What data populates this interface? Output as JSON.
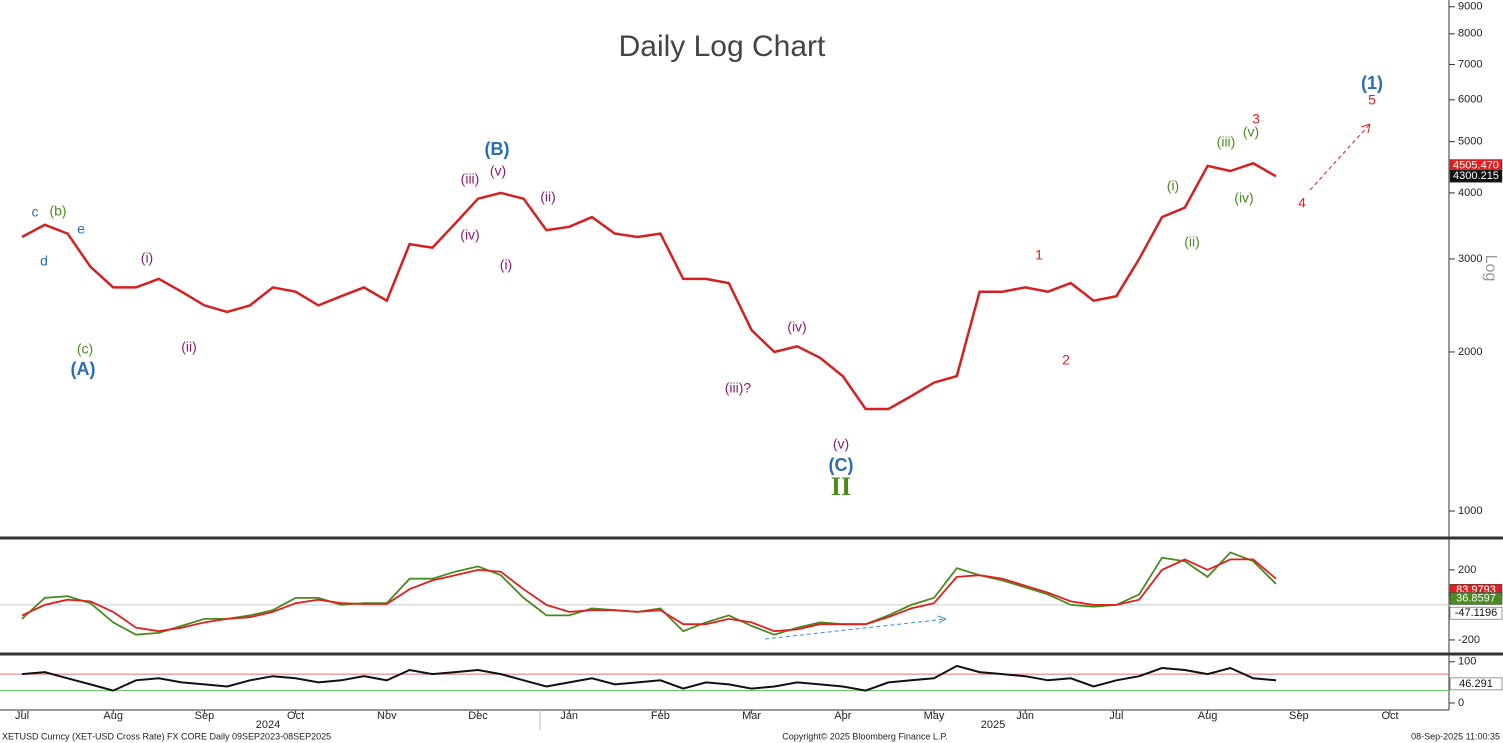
{
  "chart_data": [
    {
      "type": "line",
      "title": "Daily Log Chart",
      "y_axis_label": "Log",
      "log_scale": true,
      "categories": [
        "Jul",
        null,
        null,
        null,
        "Aug",
        null,
        null,
        null,
        "Sep",
        null,
        null,
        null,
        "Oct",
        null,
        null,
        null,
        "Nov",
        null,
        null,
        null,
        "Dec",
        null,
        null,
        null,
        "Jan",
        null,
        null,
        null,
        "Feb",
        null,
        null,
        null,
        "Mar",
        null,
        null,
        null,
        "Apr",
        null,
        null,
        null,
        "May",
        null,
        null,
        null,
        "Jun",
        null,
        null,
        null,
        "Jul",
        null,
        null,
        null,
        "Aug",
        null,
        null,
        null,
        "Sep",
        null,
        null,
        null,
        "Oct",
        null,
        null,
        null
      ],
      "group_labels": [
        "2024",
        "2025"
      ],
      "color": "#d42020",
      "values": [
        3300,
        3480,
        3350,
        2900,
        2650,
        2650,
        2750,
        2600,
        2450,
        2380,
        2450,
        2650,
        2600,
        2450,
        2550,
        2650,
        2500,
        3200,
        3150,
        3500,
        3900,
        4000,
        3900,
        3400,
        3450,
        3600,
        3350,
        3300,
        3350,
        2750,
        2750,
        2700,
        2200,
        2000,
        2050,
        1950,
        1800,
        1560,
        1560,
        1650,
        1750,
        1800,
        2600,
        2600,
        2650,
        2600,
        2700,
        2500,
        2550,
        3000,
        3600,
        3750,
        4500,
        4400,
        4550,
        4300,
        null,
        null,
        null,
        null,
        null,
        null,
        null,
        null
      ],
      "ylim": [
        893,
        9270
      ],
      "yticks": [
        1000,
        2000,
        3000,
        4000,
        5000,
        6000,
        7000,
        8000,
        9000
      ],
      "last_labels": [
        {
          "label": "4505.470",
          "color": "#e02020"
        },
        {
          "label": "4300.215",
          "color": "#111111"
        }
      ],
      "annotations": [
        {
          "text": "c",
          "color": "#2a6db0"
        },
        {
          "text": "(b)",
          "color": "#4a8a20"
        },
        {
          "text": "e",
          "color": "#2a6db0"
        },
        {
          "text": "d",
          "color": "#2a6db0"
        },
        {
          "text": "(c)",
          "color": "#4a8a20"
        },
        {
          "text": "(A)",
          "color": "#2a6db0"
        },
        {
          "text": "(i)",
          "color": "#8b1a6b"
        },
        {
          "text": "(ii)",
          "color": "#8b1a6b"
        },
        {
          "text": "(iii)",
          "color": "#8b1a6b"
        },
        {
          "text": "(v)",
          "color": "#8b1a6b"
        },
        {
          "text": "(B)",
          "color": "#2a6db0"
        },
        {
          "text": "(iv)",
          "color": "#8b1a6b"
        },
        {
          "text": "(i)",
          "color": "#8b1a6b"
        },
        {
          "text": "(ii)",
          "color": "#8b1a6b"
        },
        {
          "text": "(iv)",
          "color": "#8b1a6b"
        },
        {
          "text": "(iii)?",
          "color": "#8b1a6b"
        },
        {
          "text": "(v)",
          "color": "#8b1a6b"
        },
        {
          "text": "(C)",
          "color": "#2a6db0"
        },
        {
          "text": "II",
          "color": "#4a8a20"
        },
        {
          "text": "1",
          "color": "#e02020"
        },
        {
          "text": "2",
          "color": "#e02020"
        },
        {
          "text": "(i)",
          "color": "#4a8a20"
        },
        {
          "text": "(ii)",
          "color": "#4a8a20"
        },
        {
          "text": "(iii)",
          "color": "#4a8a20"
        },
        {
          "text": "(v)",
          "color": "#4a8a20"
        },
        {
          "text": "(iv)",
          "color": "#4a8a20"
        },
        {
          "text": "3",
          "color": "#e02020"
        },
        {
          "text": "4",
          "color": "#e02020"
        },
        {
          "text": "(1)",
          "color": "#2a6db0"
        },
        {
          "text": "5",
          "color": "#e02020"
        }
      ]
    },
    {
      "type": "line",
      "series": [
        {
          "color": "#4a8a20",
          "values": [
            -80,
            40,
            50,
            10,
            -100,
            -170,
            -160,
            -120,
            -80,
            -80,
            -60,
            -30,
            40,
            40,
            0,
            10,
            10,
            150,
            150,
            190,
            220,
            170,
            40,
            -60,
            -60,
            -20,
            -30,
            -40,
            -20,
            -150,
            -100,
            -60,
            -120,
            -170,
            -130,
            -100,
            -110,
            -110,
            -60,
            0,
            40,
            210,
            170,
            140,
            100,
            60,
            0,
            -10,
            0,
            60,
            270,
            250,
            160,
            300,
            250,
            120,
            null,
            null,
            null,
            null,
            null,
            null,
            null,
            null
          ]
        },
        {
          "color": "#e02020",
          "values": [
            -60,
            0,
            30,
            20,
            -40,
            -130,
            -150,
            -130,
            -100,
            -80,
            -70,
            -40,
            10,
            30,
            10,
            5,
            5,
            90,
            140,
            170,
            200,
            190,
            90,
            0,
            -40,
            -30,
            -30,
            -40,
            -30,
            -110,
            -110,
            -80,
            -100,
            -150,
            -140,
            -110,
            -110,
            -110,
            -70,
            -20,
            10,
            160,
            170,
            150,
            110,
            70,
            20,
            0,
            0,
            30,
            200,
            260,
            200,
            260,
            260,
            150,
            null,
            null,
            null,
            null,
            null,
            null,
            null,
            null
          ]
        }
      ],
      "ylim": [
        -269,
        371
      ],
      "yticks": [
        -200,
        200
      ],
      "last_labels": [
        {
          "label": "83.9793",
          "color": "#e02020"
        },
        {
          "label": "36.8597",
          "color": "#4a8a20"
        },
        {
          "label": "-47.1196",
          "color": "#ffffff"
        }
      ]
    },
    {
      "type": "line",
      "color": "#111111",
      "values": [
        70,
        75,
        60,
        45,
        30,
        55,
        60,
        50,
        45,
        40,
        55,
        65,
        60,
        50,
        55,
        65,
        55,
        80,
        70,
        75,
        80,
        70,
        55,
        40,
        50,
        60,
        45,
        50,
        55,
        35,
        50,
        45,
        35,
        40,
        50,
        45,
        40,
        30,
        50,
        55,
        60,
        90,
        75,
        70,
        65,
        55,
        60,
        40,
        55,
        65,
        85,
        80,
        70,
        85,
        60,
        55,
        null,
        null,
        null,
        null,
        null,
        null,
        null,
        null
      ],
      "ylim": [
        -17,
        114
      ],
      "yticks": [
        0,
        100
      ],
      "ref_lines": [
        {
          "value": 70,
          "color": "#e07070"
        },
        {
          "value": 30,
          "color": "#60c060"
        }
      ],
      "last_labels": [
        {
          "label": "46.291",
          "color": "#ffffff"
        }
      ]
    }
  ],
  "footer": {
    "left": "XETUSD Curncy (XET-USD Cross Rate) FX CORE  Daily 09SEP2023-08SEP2025",
    "center": "Copyright© 2025 Bloomberg Finance L.P.",
    "right": "08-Sep-2025 11:00:35"
  }
}
